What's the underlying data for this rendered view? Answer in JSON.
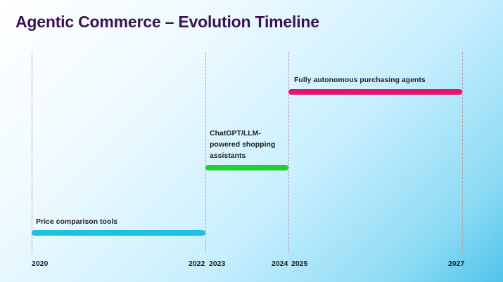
{
  "title": "Agentic Commerce – Evolution Timeline",
  "phases": [
    {
      "label": "Price comparison tools",
      "start": 2020,
      "end": 2022,
      "color": "#1ec0e4"
    },
    {
      "label": "ChatGPT/LLM-powered shopping assistants",
      "label_lines": [
        "ChatGPT/LLM-",
        "powered shopping",
        "assistants"
      ],
      "start": 2023,
      "end": 2024,
      "color": "#22d02e"
    },
    {
      "label": "Fully autonomous purchasing agents",
      "start": 2025,
      "end": 2027,
      "color": "#e2146c"
    }
  ],
  "years": [
    "2020",
    "2022",
    "2023",
    "2024",
    "2025",
    "2027"
  ],
  "colors": {
    "title": "#3b1150",
    "gridline": "#b89aa8"
  }
}
